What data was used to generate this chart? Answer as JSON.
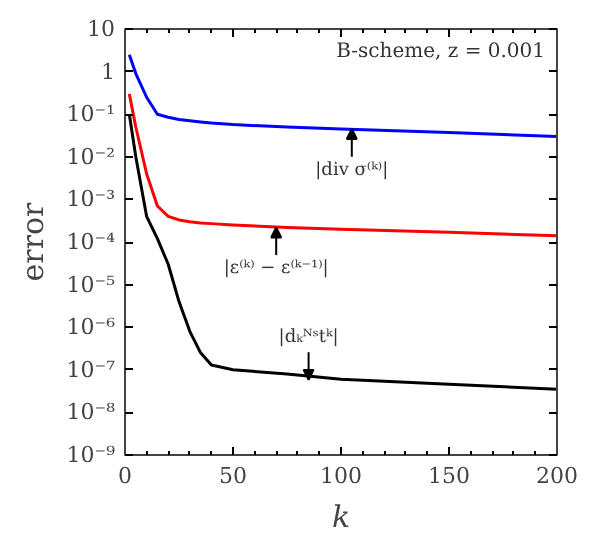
{
  "chart_data": {
    "type": "line",
    "xlabel": "k",
    "ylabel": "error",
    "log": "y",
    "grid": false,
    "xlim": [
      0,
      200
    ],
    "xticks": [
      0,
      50,
      100,
      150,
      200
    ],
    "ylim": [
      1e-09,
      10
    ],
    "yticks": [
      10,
      1,
      {
        "value": 0.1,
        "label": "10⁻¹"
      },
      {
        "value": 0.01,
        "label": "10⁻²"
      },
      {
        "value": 0.001,
        "label": "10⁻³"
      },
      {
        "value": 0.0001,
        "label": "10⁻⁴"
      },
      {
        "value": 1e-05,
        "label": "10⁻⁵"
      },
      {
        "value": 1e-06,
        "label": "10⁻⁶"
      },
      {
        "value": 1e-07,
        "label": "10⁻⁷"
      },
      {
        "value": 1e-08,
        "label": "10⁻⁸"
      },
      {
        "value": 1e-09,
        "label": "10⁻⁹"
      }
    ],
    "x": [
      2,
      5,
      10,
      15,
      20,
      25,
      30,
      35,
      40,
      50,
      75,
      100,
      150,
      200
    ],
    "series": [
      {
        "color": "#0000ff",
        "values": [
          2.5,
          0.9,
          0.25,
          0.1,
          0.085,
          0.075,
          0.07,
          0.066,
          0.062,
          0.057,
          0.05,
          0.045,
          0.037,
          0.03
        ]
      },
      {
        "color": "#ff0000",
        "values": [
          0.3,
          0.05,
          0.004,
          0.0007,
          0.0004,
          0.00033,
          0.0003,
          0.00028,
          0.00027,
          0.00025,
          0.00022,
          0.0002,
          0.00017,
          0.00014
        ]
      },
      {
        "color": "#000000",
        "values": [
          0.1,
          0.01,
          0.0004,
          0.00012,
          3e-05,
          4e-06,
          8e-07,
          2.5e-07,
          1.3e-07,
          1e-07,
          8e-08,
          6e-08,
          4.6e-08,
          3.5e-08
        ]
      }
    ],
    "annotations": [
      "B-scheme, z = 0.001",
      {
        "text": "|div σ⁽ᵏ⁾|",
        "x": 105,
        "y": 0.045
      },
      {
        "text": "|ε⁽ᵏ⁾ − ε⁽ᵏ⁻¹⁾|",
        "x": 70,
        "y": 0.00022
      },
      {
        "text": "|dₖᴺˢtᵏ|",
        "x": 85,
        "y": 5.8e-08
      }
    ]
  }
}
